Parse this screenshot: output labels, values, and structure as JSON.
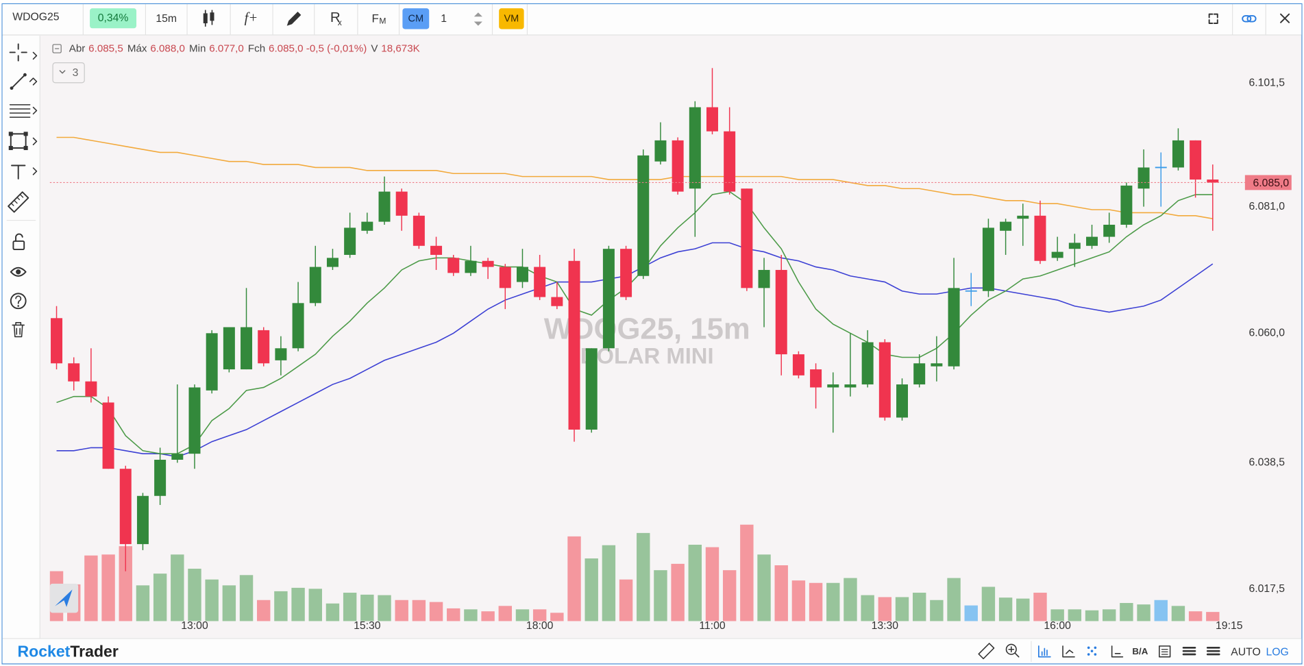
{
  "toolbar": {
    "symbol": "WDOG25",
    "change": "0,34%",
    "interval": "15m",
    "formula": "f+",
    "replay": "R",
    "replay_sub": "x",
    "fm": "F",
    "fm_sub": "M",
    "cm": "CM",
    "quantity": "1",
    "vm": "VM"
  },
  "legend": [
    {
      "label": "Abr",
      "value": "6.085,5"
    },
    {
      "label": "Máx",
      "value": "6.088,0"
    },
    {
      "label": "Min",
      "value": "6.077,0"
    },
    {
      "label": "Fch",
      "value": "6.085,0 -0,5 (-0,01%)"
    },
    {
      "label": "V",
      "value": "18,673K"
    }
  ],
  "collapse_count": "3",
  "watermark": [
    "WDOG25, 15m",
    "DOLAR MINI"
  ],
  "brand": {
    "first": "Rocket",
    "second": "Trader"
  },
  "status_bar": {
    "bid_ask": "B/A",
    "auto": "AUTO",
    "log": "LOG"
  },
  "chart_data": {
    "type": "candlestick",
    "categories": [
      null,
      null,
      null,
      null,
      null,
      null,
      null,
      null,
      "13:00",
      null,
      null,
      null,
      null,
      null,
      null,
      null,
      null,
      null,
      "15:30",
      null,
      null,
      null,
      null,
      null,
      null,
      null,
      null,
      null,
      "18:00",
      null,
      null,
      null,
      null,
      null,
      null,
      null,
      null,
      null,
      "11:00",
      null,
      null,
      null,
      null,
      null,
      null,
      null,
      null,
      null,
      "13:30",
      null,
      null,
      null,
      null,
      null,
      null,
      null,
      null,
      null,
      "16:00",
      null,
      null,
      null,
      null,
      null,
      null,
      null,
      null,
      null
    ],
    "time_label": "19:15",
    "open": [
      6062.5,
      6055,
      6052,
      6048.5,
      6037.5,
      6025,
      6033,
      6039,
      6040,
      6050.5,
      6054,
      6054,
      6060.5,
      6055.5,
      6057.5,
      6065,
      6071,
      6073,
      6077,
      6078.5,
      6083.5,
      6079.5,
      6074.5,
      6072.5,
      6070,
      6072,
      6071,
      6068.5,
      6071,
      6066,
      6072,
      6044,
      6057.5,
      6074,
      6069.5,
      6088.5,
      6092,
      6084,
      6097.5,
      6093.5,
      6084,
      6067.5,
      6070.5,
      6056.5,
      6054,
      6051,
      6051,
      6051.5,
      6058.5,
      6046,
      6051.5,
      6054.5,
      6054.5,
      6067,
      6067,
      6077,
      6079,
      6079.5,
      6072.5,
      6074,
      6074.5,
      6076,
      6078,
      6084,
      6087.5,
      6087.5,
      6092,
      6085.5
    ],
    "high": [
      6064.5,
      6056,
      6057.5,
      6049.5,
      6038,
      6033.5,
      6041,
      6051.5,
      6051.5,
      6060.5,
      6061,
      6067.5,
      6061,
      6059.5,
      6068.5,
      6074.5,
      6074,
      6080,
      6080,
      6086,
      6084,
      6080,
      6076,
      6073,
      6074.5,
      6072.5,
      6071.5,
      6074,
      6073,
      6068.5,
      6074,
      6057.5,
      6074.5,
      6074.5,
      6090.5,
      6095,
      6092.5,
      6098.5,
      6104,
      6097.5,
      6084,
      6072.5,
      6073,
      6057,
      6055,
      6053.5,
      6060,
      6060.5,
      6059,
      6052.5,
      6056.5,
      6059.5,
      6072.5,
      6070,
      6079,
      6079,
      6081.5,
      6082,
      6076,
      6076.5,
      6078,
      6080,
      6085,
      6090.5,
      6090,
      6094,
      6092,
      6088
    ],
    "low": [
      6054,
      6050.5,
      6048.5,
      6037.5,
      6020.5,
      6024,
      6031.5,
      6038.5,
      6037.5,
      6050,
      6053.5,
      6054,
      6054.5,
      6053,
      6057,
      6064.5,
      6070.5,
      6072.5,
      6076.5,
      6078,
      6077,
      6074,
      6070.5,
      6069.5,
      6069.5,
      6069,
      6064,
      6067.5,
      6065.5,
      6064,
      6042,
      6043.5,
      6057,
      6065.5,
      6069,
      6088,
      6083,
      6076,
      6093,
      6083,
      6067,
      6061,
      6053,
      6052.5,
      6047.5,
      6043.5,
      6049.5,
      6051,
      6045.5,
      6045.5,
      6051,
      6052,
      6054,
      6064.5,
      6066,
      6073,
      6074.5,
      6071.5,
      6072,
      6071,
      6074,
      6075,
      6077.5,
      6081,
      6081,
      6087,
      6082.5,
      6077
    ],
    "close": [
      6055,
      6052,
      6049.5,
      6037.5,
      6025,
      6033,
      6039,
      6040,
      6051,
      6060,
      6061,
      6061,
      6055,
      6057.5,
      6065,
      6071,
      6072.5,
      6077.5,
      6078.5,
      6083.5,
      6079.5,
      6074.5,
      6073,
      6070,
      6072,
      6071,
      6067.5,
      6071,
      6066,
      6064.5,
      6044,
      6057.5,
      6074,
      6066,
      6089.5,
      6092,
      6083.5,
      6097.5,
      6093.5,
      6083.5,
      6067.5,
      6070.5,
      6056.5,
      6053,
      6051,
      6051.5,
      6051.5,
      6058.5,
      6046,
      6051.5,
      6055,
      6055,
      6067.5,
      6067,
      6077.5,
      6078.5,
      6079.5,
      6072,
      6073.5,
      6075,
      6076,
      6078,
      6084.5,
      6087.5,
      6087.5,
      6092,
      6085.5,
      6085
    ],
    "volume": [
      102,
      75,
      134,
      136,
      153,
      73,
      97,
      136,
      107,
      85,
      73,
      94,
      43,
      61,
      68,
      66,
      36,
      58,
      54,
      53,
      43,
      43,
      39,
      26,
      24,
      20,
      31,
      24,
      24,
      17,
      173,
      128,
      155,
      85,
      180,
      104,
      117,
      156,
      151,
      104,
      197,
      136,
      114,
      83,
      78,
      78,
      88,
      53,
      49,
      49,
      58,
      43,
      88,
      32,
      70,
      48,
      46,
      58,
      24,
      24,
      22,
      24,
      37,
      34,
      43,
      31,
      20,
      18.673
    ],
    "up_color": "#33893b",
    "down_color": "#f0344f",
    "flat_color": "#3a9be8",
    "volume_colors": {
      "up": "#98c49b",
      "down": "#f4979e",
      "flat": "#86c3f1"
    },
    "series": [
      {
        "color": "#f2a93b",
        "values": [
          6092.5,
          6092.5,
          6092,
          6091.5,
          6091,
          6090.5,
          6090,
          6090,
          6089.5,
          6089,
          6088.5,
          6088.5,
          6088,
          6088,
          6088,
          6087.5,
          6087.5,
          6087.5,
          6087,
          6087,
          6087,
          6087,
          6087,
          6086.5,
          6086.5,
          6086.5,
          6086.5,
          6086,
          6086,
          6086,
          6086,
          6086,
          6085.5,
          6085.5,
          6085.5,
          6085.5,
          6086,
          6086,
          6086,
          6086,
          6086,
          6086,
          6086,
          6085.5,
          6085.5,
          6085.5,
          6085,
          6084.5,
          6084.5,
          6084,
          6084,
          6083.5,
          6083,
          6083,
          6082.5,
          6082,
          6082,
          6081.5,
          6081.5,
          6081,
          6080.5,
          6080.5,
          6080,
          6080,
          6080,
          6079.5,
          6079.5,
          6079
        ]
      },
      {
        "color": "#3b3fd4",
        "values": [
          6040.5,
          6040.5,
          6041,
          6041,
          6040.5,
          6040,
          6040,
          6039.5,
          6040.5,
          6042,
          6043,
          6044,
          6045.5,
          6047,
          6048.5,
          6050,
          6051.5,
          6052.5,
          6054,
          6055.5,
          6056.5,
          6057.5,
          6058.5,
          6060,
          6062,
          6064,
          6065.5,
          6066.5,
          6067.5,
          6068.5,
          6068.5,
          6068.5,
          6069,
          6069.5,
          6071,
          6072.5,
          6073.5,
          6074,
          6075,
          6075,
          6074,
          6073.5,
          6072.5,
          6072,
          6071,
          6070.5,
          6069.5,
          6069,
          6068.5,
          6067,
          6066.5,
          6066.5,
          6067,
          6067.5,
          6067.5,
          6067,
          6066.5,
          6066,
          6065.5,
          6064.5,
          6064,
          6063.5,
          6064,
          6064.5,
          6065.5,
          6067.5,
          6069.5,
          6071.5
        ]
      },
      {
        "color": "#4b9a47",
        "values": [
          6048.5,
          6049.5,
          6049.5,
          6047.5,
          6043,
          6040.5,
          6040,
          6040,
          6041.5,
          6045.5,
          6047.5,
          6050.5,
          6051,
          6052.5,
          6054.5,
          6056.5,
          6059.5,
          6062,
          6065,
          6067.5,
          6070.5,
          6072,
          6072.5,
          6072.5,
          6072,
          6071.5,
          6071,
          6071,
          6069.5,
          6068.5,
          6064,
          6063,
          6065.5,
          6067.5,
          6070.5,
          6074.5,
          6077.5,
          6080,
          6083,
          6083.5,
          6081.5,
          6077.5,
          6074,
          6068.5,
          6064,
          6061.5,
          6060,
          6058.5,
          6056.5,
          6056,
          6056,
          6057.5,
          6060,
          6063,
          6065.5,
          6067,
          6069,
          6069.5,
          6070.5,
          6071.5,
          6072.5,
          6073.5,
          6076,
          6078,
          6079.5,
          6082,
          6083,
          6083
        ]
      }
    ],
    "ylim": [
      6012.5,
      6109.5
    ],
    "yticks": [
      {
        "value": 6101.5,
        "label": "6.101,5"
      },
      {
        "value": 6081,
        "label": "6.081,0"
      },
      {
        "value": 6060,
        "label": "6.060,0"
      },
      {
        "value": 6038.5,
        "label": "6.038,5"
      },
      {
        "value": 6017.5,
        "label": "6.017,5"
      }
    ],
    "last_price": {
      "value": 6085,
      "label": "6.085,0",
      "color": "#ef7b87"
    },
    "grid": false
  }
}
